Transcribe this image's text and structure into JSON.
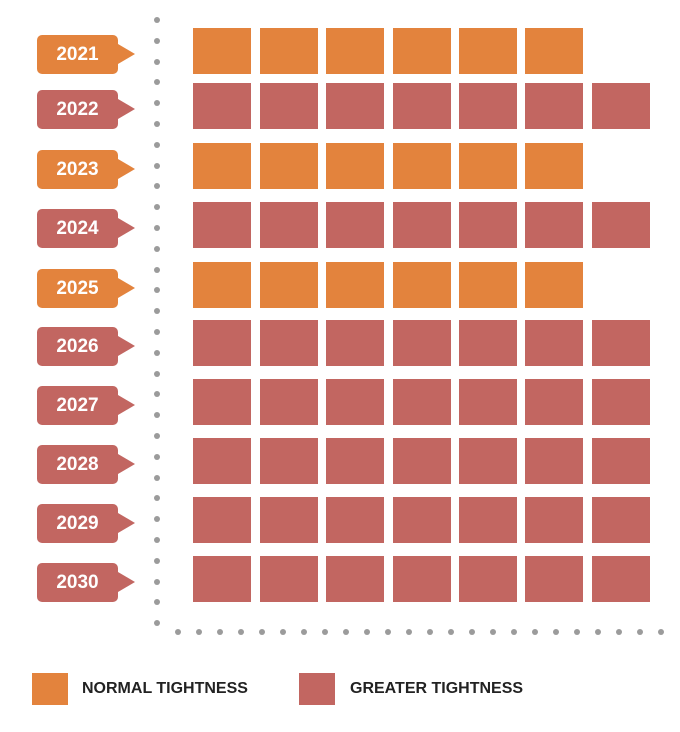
{
  "chart_data": {
    "type": "bar",
    "orientation": "horizontal",
    "title": "",
    "categories": [
      "2021",
      "2022",
      "2023",
      "2024",
      "2025",
      "2026",
      "2027",
      "2028",
      "2029",
      "2030"
    ],
    "values": [
      6,
      7,
      6,
      7,
      6,
      7,
      7,
      7,
      7,
      7
    ],
    "category_type": [
      "normal",
      "greater",
      "normal",
      "greater",
      "normal",
      "greater",
      "greater",
      "greater",
      "greater",
      "greater"
    ],
    "legend": [
      {
        "key": "normal",
        "label": "NORMAL TIGHTNESS",
        "color": "#E3833D"
      },
      {
        "key": "greater",
        "label": "GREATER TIGHTNESS",
        "color": "#C26661"
      }
    ],
    "legend_position": "bottom-left",
    "grid": false
  }
}
